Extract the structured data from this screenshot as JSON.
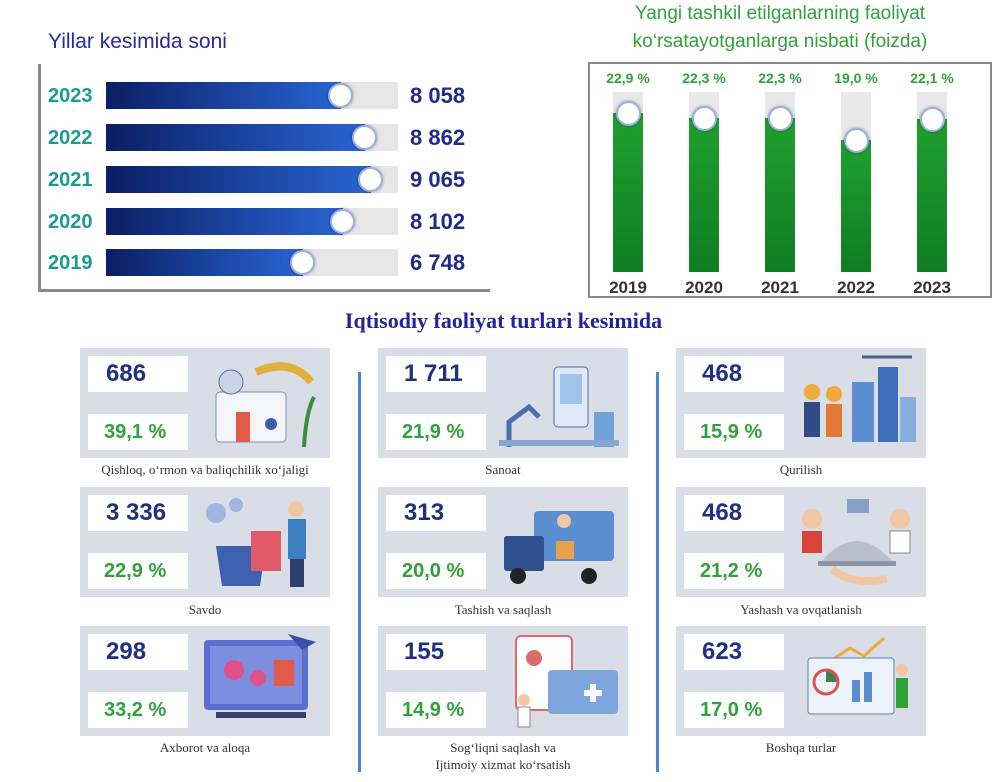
{
  "colors": {
    "blue_title": "#2a2a9e",
    "year_teal": "#1b9a95",
    "value_navy": "#202a8a",
    "green": "#2fa23a",
    "card_bg": "#d9dde6"
  },
  "chart_data": [
    {
      "type": "bar",
      "orientation": "horizontal",
      "title": "Yillar kesimida soni",
      "categories": [
        "2023",
        "2022",
        "2021",
        "2020",
        "2019"
      ],
      "values": [
        8058,
        8862,
        9065,
        8102,
        6748
      ],
      "value_labels": [
        "8 058",
        "8 862",
        "9 065",
        "8 102",
        "6 748"
      ],
      "xlim": [
        0,
        10000
      ]
    },
    {
      "type": "bar",
      "orientation": "vertical",
      "title": "Yangi tashkil etilganlarning faoliyat ko‘rsatayotganlarga nisbati (foizda)",
      "categories": [
        "2019",
        "2020",
        "2021",
        "2022",
        "2023"
      ],
      "values": [
        22.9,
        22.3,
        22.3,
        19.0,
        22.1
      ],
      "value_labels": [
        "22,9 %",
        "22,3 %",
        "22,3 %",
        "19,0 %",
        "22,1 %"
      ],
      "ylim": [
        0,
        26
      ]
    }
  ],
  "section_title": "Iqtisodiy faoliyat turlari kesimida",
  "sectors": [
    {
      "count": "686",
      "share": "39,1 %",
      "name": "Qishloq, o‘rmon va baliqchilik xo‘jaligi",
      "icon": "agriculture-icon"
    },
    {
      "count": "1 711",
      "share": "21,9 %",
      "name": "Sanoat",
      "icon": "industry-icon"
    },
    {
      "count": "468",
      "share": "15,9 %",
      "name": "Qurilish",
      "icon": "construction-icon"
    },
    {
      "count": "3 336",
      "share": "22,9 %",
      "name": "Savdo",
      "icon": "shopping-icon"
    },
    {
      "count": "313",
      "share": "20,0 %",
      "name": "Tashish va saqlash",
      "icon": "logistics-icon"
    },
    {
      "count": "468",
      "share": "21,2 %",
      "name": "Yashash va ovqatlanish",
      "icon": "hospitality-icon"
    },
    {
      "count": "298",
      "share": "33,2 %",
      "name": "Axborot va aloqa",
      "icon": "it-icon"
    },
    {
      "count": "155",
      "share": "14,9 %",
      "name": "Sog‘liqni saqlash va",
      "name2": "Ijtimoiy xizmat ko‘rsatish",
      "icon": "health-icon"
    },
    {
      "count": "623",
      "share": "17,0 %",
      "name": "Boshqa turlar",
      "icon": "analytics-icon"
    }
  ]
}
